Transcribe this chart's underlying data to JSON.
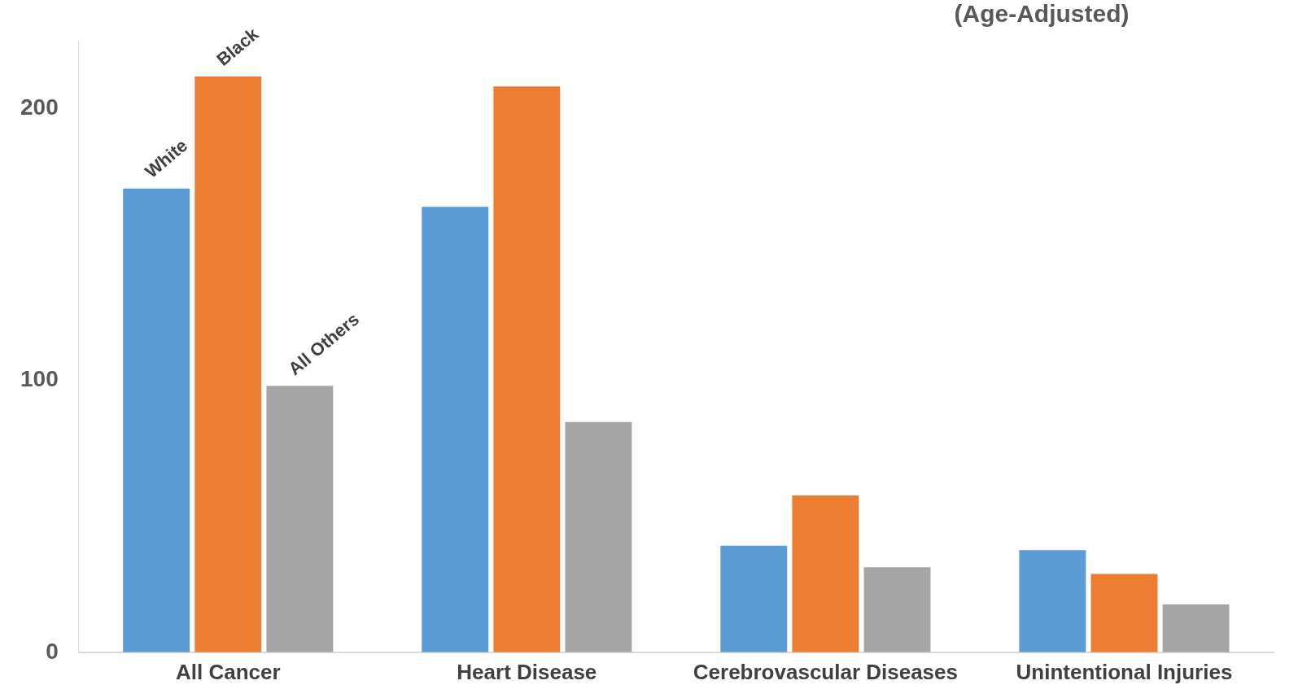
{
  "chart_data": {
    "type": "bar",
    "title": "(Age-Adjusted)",
    "categories": [
      "All Cancer",
      "Heart Disease",
      "Cerebrovascular Diseases",
      "Unintentional Injuries"
    ],
    "series": [
      {
        "name": "White",
        "color": "#5b9bd5",
        "values": [
          170.6,
          163.9,
          39.2,
          37.6
        ]
      },
      {
        "name": "Black",
        "color": "#ed7d31",
        "values": [
          211.8,
          208.2,
          57.7,
          28.8
        ]
      },
      {
        "name": "All Others",
        "color": "#a5a5a5",
        "values": [
          98.0,
          84.7,
          31.3,
          17.6
        ]
      }
    ],
    "ylim": [
      0,
      225
    ],
    "yticks": [
      0,
      100,
      200
    ],
    "grid": false,
    "legend": false
  }
}
